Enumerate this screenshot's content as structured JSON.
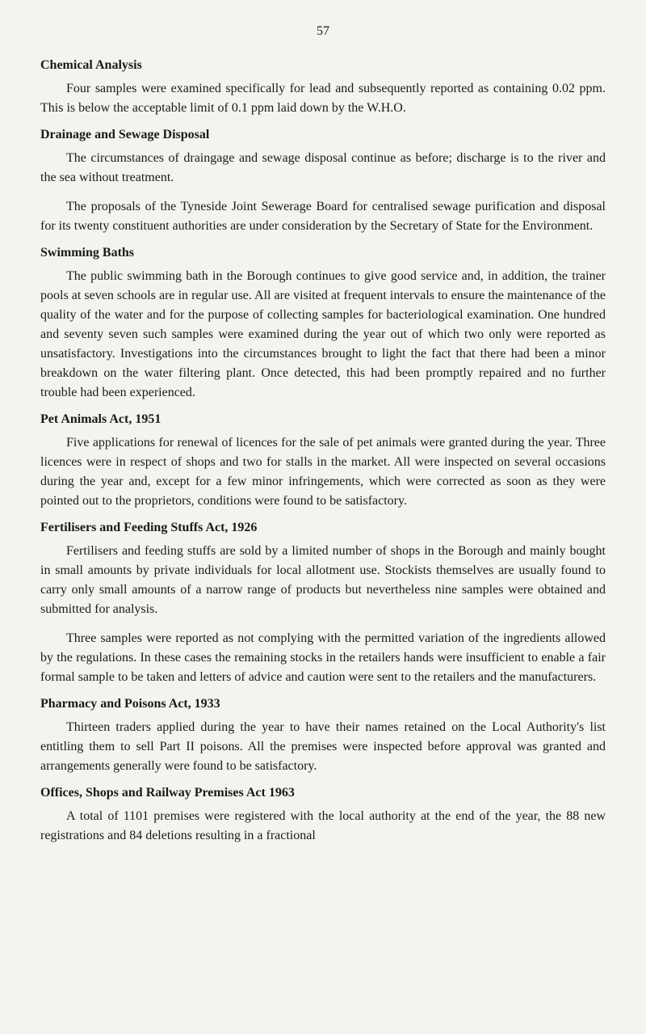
{
  "background_color": "#f5f3ed",
  "text_color": "#1a1a1a",
  "page_number": "57",
  "sections": {
    "chemical": {
      "heading": "Chemical Analysis",
      "p1": "Four samples were examined specifically for lead and subsequently reported as containing 0.02 ppm. This is below the acceptable limit of 0.1 ppm laid down by the W.H.O."
    },
    "drainage": {
      "heading": "Drainage and Sewage Disposal",
      "p1": "The circumstances of draingage and sewage disposal continue as before; discharge is to the river and the sea without treatment.",
      "p2": "The proposals of the Tyneside Joint Sewerage Board for centralised sewage purification and disposal for its twenty constituent authorities are under consideration by the Secretary of State for the Environment."
    },
    "swimming": {
      "heading": "Swimming Baths",
      "p1": "The public swimming bath in the Borough continues to give good service and, in addition, the trainer pools at seven schools are in regular use. All are visited at frequent intervals to ensure the maintenance of the quality of the water and for the purpose of collecting samples for bacteriological examination. One hundred and seventy seven such samples were examined during the year out of which two only were reported as unsatisfactory. Investigations into the circumstances brought to light the fact that there had been a minor breakdown on the water filtering plant. Once detected, this had been promptly repaired and no further trouble had been experienced."
    },
    "pet": {
      "heading": "Pet Animals Act, 1951",
      "p1": "Five applications for renewal of licences for the sale of pet animals were granted during the year. Three licences were in respect of shops and two for stalls in the market. All were inspected on several occasions during the year and, except for a few minor infringements, which were corrected as soon as they were pointed out to the proprietors, conditions were found to be satisfactory."
    },
    "fertilisers": {
      "heading": "Fertilisers and Feeding Stuffs Act, 1926",
      "p1": "Fertilisers and feeding stuffs are sold by a limited number of shops in the Borough and mainly bought in small amounts by private individuals for local allotment use. Stockists themselves are usually found to carry only small amounts of a narrow range of products but nevertheless nine samples were obtained and submitted for analysis.",
      "p2": "Three samples were reported as not complying with the permitted variation of the ingredients allowed by the regulations. In these cases the remaining stocks in the retailers hands were insufficient to enable a fair formal sample to be taken and letters of advice and caution were sent to the retailers and the manufacturers."
    },
    "pharmacy": {
      "heading": "Pharmacy and Poisons Act, 1933",
      "p1": "Thirteen traders applied during the year to have their names retained on the Local Authority's list entitling them to sell Part II poisons. All the premises were inspected before approval was granted and arrangements generally were found to be satisfactory."
    },
    "offices": {
      "heading": "Offices, Shops and Railway Premises Act 1963",
      "p1": "A total of 1101 premises were registered with the local authority at the end of the year, the 88 new registrations and 84 deletions resulting in a fractional"
    }
  }
}
